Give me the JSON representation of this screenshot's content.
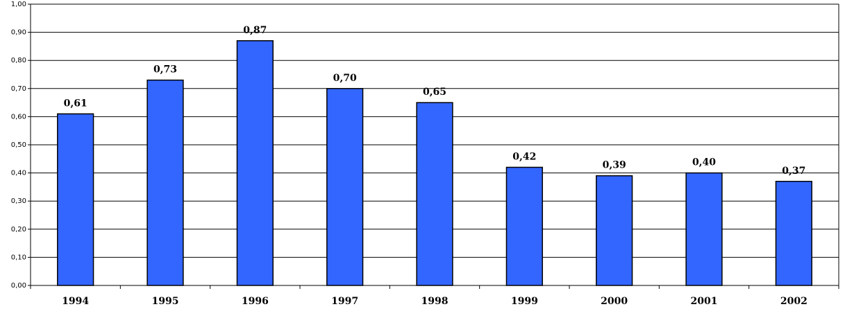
{
  "chart_data": {
    "type": "bar",
    "categories": [
      "1994",
      "1995",
      "1996",
      "1997",
      "1998",
      "1999",
      "2000",
      "2001",
      "2002"
    ],
    "values": [
      0.61,
      0.73,
      0.87,
      0.7,
      0.65,
      0.42,
      0.39,
      0.4,
      0.37
    ],
    "value_labels": [
      "0,61",
      "0,73",
      "0,87",
      "0,70",
      "0,65",
      "0,42",
      "0,39",
      "0,40",
      "0,37"
    ],
    "color": "#3366ff",
    "ylim": [
      0,
      1
    ],
    "yticks": [
      {
        "value": 0,
        "label": "0,00"
      },
      {
        "value": 0.1,
        "label": "0,10"
      },
      {
        "value": 0.2,
        "label": "0,20"
      },
      {
        "value": 0.3,
        "label": "0,30"
      },
      {
        "value": 0.4,
        "label": "0,40"
      },
      {
        "value": 0.5,
        "label": "0,50"
      },
      {
        "value": 0.6,
        "label": "0,60"
      },
      {
        "value": 0.7,
        "label": "0,70"
      },
      {
        "value": 0.8,
        "label": "0,80"
      },
      {
        "value": 0.9,
        "label": "0,90"
      },
      {
        "value": 1,
        "label": "1,00"
      }
    ],
    "grid": true
  }
}
